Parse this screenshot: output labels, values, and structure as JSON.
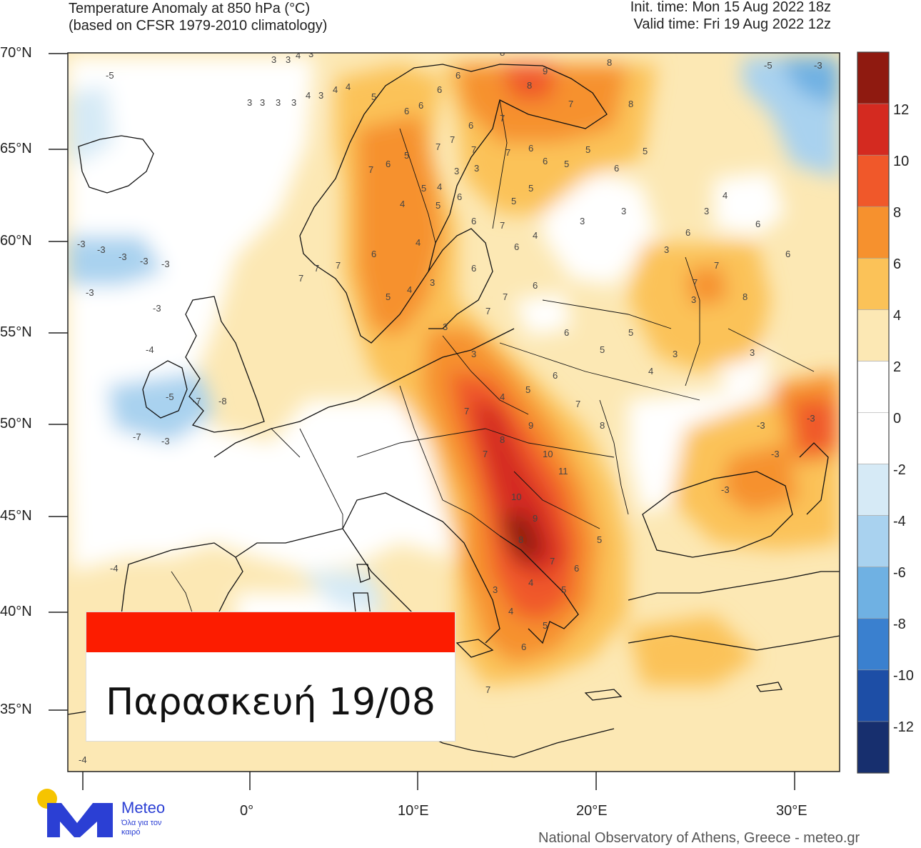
{
  "header": {
    "title_line1": "Temperature Anomaly at 850 hPa (°C)",
    "title_line2": "(based on CFSR 1979-2010 climatology)",
    "init_time": "Init. time: Mon 15 Aug 2022 18z",
    "valid_time": "Valid time: Fri 19 Aug 2022 12z"
  },
  "axes": {
    "lat_labels": [
      "70°N",
      "65°N",
      "60°N",
      "55°N",
      "50°N",
      "45°N",
      "40°N",
      "35°N"
    ],
    "lon_labels": [
      "0°",
      "10°E",
      "20°E",
      "30°E"
    ]
  },
  "colorbar": {
    "labels": [
      "12",
      "10",
      "8",
      "6",
      "4",
      "2",
      "0",
      "-2",
      "-4",
      "-6",
      "-8",
      "-10",
      "-12"
    ],
    "colors": [
      "#8f1a10",
      "#d42a20",
      "#f0582a",
      "#f6912e",
      "#fbc258",
      "#fce8b4",
      "#ffffff",
      "#ffffff",
      "#d6eaf6",
      "#a9d2ef",
      "#6fb1e3",
      "#3a80cf",
      "#1d4ea6",
      "#172f6e"
    ]
  },
  "date_box": {
    "text": "Παρασκευή 19/08",
    "bar_color": "#fc1c00"
  },
  "logo": {
    "name": "Meteo",
    "tagline": "Όλα για τον καιρό",
    "icon": "meteo-logo-icon"
  },
  "footer": "National Observatory of Athens, Greece - meteo.gr",
  "contour_values": [
    "3",
    "3",
    "4",
    "3",
    "3",
    "3",
    "3",
    "3",
    "4",
    "3",
    "4",
    "4",
    "5",
    "6",
    "6",
    "6",
    "6",
    "8",
    "9",
    "8",
    "8",
    "7",
    "8",
    "7",
    "6",
    "7",
    "7",
    "7",
    "7",
    "6",
    "5",
    "5",
    "5",
    "6",
    "6",
    "5",
    "5",
    "4",
    "3",
    "3",
    "3",
    "3",
    "4",
    "6",
    "6",
    "7",
    "7",
    "8",
    "7",
    "6",
    "5",
    "5",
    "4",
    "3",
    "3",
    "4",
    "4",
    "5",
    "6",
    "6",
    "7",
    "6",
    "6",
    "7",
    "7",
    "6",
    "6",
    "5",
    "5",
    "4",
    "3",
    "3",
    "3",
    "6",
    "7",
    "7",
    "7",
    "6",
    "5",
    "4",
    "3",
    "3",
    "3",
    "4",
    "5",
    "6",
    "7",
    "8",
    "7",
    "7",
    "8",
    "9",
    "10",
    "11",
    "10",
    "9",
    "8",
    "7",
    "6",
    "5",
    "5",
    "4",
    "4",
    "3",
    "5",
    "6",
    "7",
    "8",
    "7",
    "6",
    "5",
    "4",
    "3",
    "-4",
    "-4",
    "-3",
    "-3",
    "-3",
    "-3",
    "-3",
    "-3",
    "-3",
    "-3",
    "-3",
    "-3",
    "-3",
    "-4",
    "-5",
    "-7",
    "-8",
    "-7",
    "-3",
    "-5",
    "-5",
    "-3"
  ]
}
